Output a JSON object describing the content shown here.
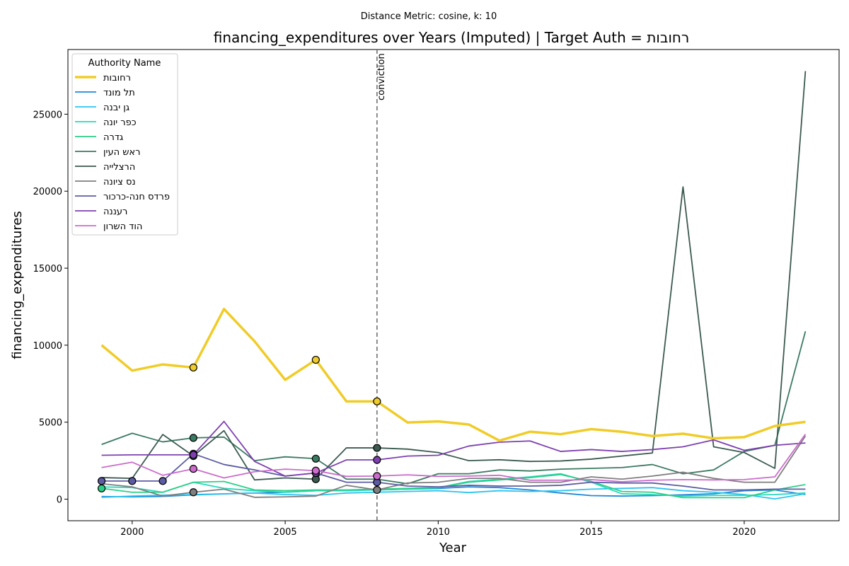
{
  "chart_data": {
    "type": "line",
    "suptitle": "Distance Metric: cosine, k: 10",
    "title": "financing_expenditures over Years (Imputed) | Target Auth = רחובות",
    "xlabel": "Year",
    "ylabel": "financing_expenditures",
    "xlim": [
      1997.9,
      2023.1
    ],
    "ylim": [
      -1400,
      29200
    ],
    "xticks": [
      2000,
      2005,
      2010,
      2015,
      2020
    ],
    "yticks": [
      0,
      5000,
      10000,
      15000,
      20000,
      25000
    ],
    "grid": false,
    "legend_title": "Authority Name",
    "legend_position": "upper-left",
    "vline": {
      "x": 2008,
      "label": "conviction",
      "color": "#707070"
    },
    "x": [
      1999,
      2000,
      2001,
      2002,
      2003,
      2004,
      2005,
      2006,
      2007,
      2008,
      2009,
      2010,
      2011,
      2012,
      2013,
      2014,
      2015,
      2016,
      2017,
      2018,
      2019,
      2020,
      2021,
      2022
    ],
    "series": [
      {
        "name": "רחובות",
        "color": "#f0cc28",
        "width": 3.5,
        "values": [
          10000,
          8350,
          8750,
          8550,
          12350,
          10250,
          7750,
          9050,
          6350,
          6350,
          4980,
          5050,
          4850,
          3800,
          4380,
          4220,
          4550,
          4380,
          4100,
          4250,
          3950,
          4030,
          4750,
          5020
        ],
        "imputed": [
          2002,
          2006,
          2008
        ]
      },
      {
        "name": "תל מונד",
        "color": "#1f88d8",
        "width": 1.8,
        "values": [
          170,
          150,
          180,
          280,
          340,
          400,
          450,
          550,
          580,
          600,
          650,
          700,
          800,
          750,
          600,
          400,
          230,
          200,
          230,
          280,
          350,
          550,
          600,
          300
        ],
        "imputed": []
      },
      {
        "name": "גן יבנה",
        "color": "#2cc4f0",
        "width": 1.8,
        "values": [
          120,
          200,
          260,
          300,
          350,
          400,
          300,
          250,
          400,
          450,
          500,
          550,
          430,
          550,
          500,
          550,
          650,
          700,
          750,
          550,
          450,
          300,
          20,
          350
        ],
        "imputed": []
      },
      {
        "name": "כפר יונה",
        "color": "#28d8bc",
        "width": 1.8,
        "values": [
          800,
          750,
          450,
          1100,
          700,
          550,
          450,
          550,
          550,
          600,
          650,
          750,
          1150,
          1300,
          1450,
          1650,
          1100,
          350,
          300,
          200,
          250,
          250,
          300,
          400
        ],
        "imputed": []
      },
      {
        "name": "גדרה",
        "color": "#2ccf88",
        "width": 1.8,
        "values": [
          700,
          450,
          450,
          1100,
          1150,
          600,
          550,
          600,
          600,
          650,
          700,
          750,
          1100,
          1250,
          1400,
          1600,
          1150,
          500,
          450,
          100,
          100,
          100,
          600,
          950
        ],
        "imputed": [
          1999
        ]
      },
      {
        "name": "ראש העין",
        "color": "#3b7a62",
        "width": 1.8,
        "values": [
          3550,
          4280,
          3720,
          3980,
          4030,
          2500,
          2750,
          2630,
          1300,
          1300,
          1000,
          1650,
          1650,
          1900,
          1830,
          1950,
          2000,
          2050,
          2250,
          1650,
          1900,
          3100,
          3500,
          10900
        ],
        "imputed": [
          2002,
          2006
        ]
      },
      {
        "name": "הרצלייה",
        "color": "#3b5a50",
        "width": 1.8,
        "values": [
          1400,
          1350,
          4200,
          2800,
          4450,
          1250,
          1380,
          1300,
          3330,
          3330,
          3250,
          3030,
          2500,
          2560,
          2450,
          2480,
          2600,
          2800,
          3000,
          20280,
          3400,
          3030,
          2000,
          27800
        ],
        "imputed": [
          2002,
          2006,
          2008
        ]
      },
      {
        "name": "נס ציונה",
        "color": "#7f7f80",
        "width": 1.8,
        "values": [
          1000,
          800,
          200,
          450,
          650,
          120,
          150,
          200,
          900,
          600,
          1050,
          1100,
          1350,
          1350,
          1100,
          1100,
          1450,
          1300,
          1500,
          1750,
          1350,
          1100,
          1100,
          4100
        ],
        "imputed": [
          2002,
          2008
        ]
      },
      {
        "name": "פרדס חנה-כרכור",
        "color": "#5c5ca4",
        "width": 1.8,
        "values": [
          1180,
          1180,
          1180,
          2950,
          2250,
          1900,
          1500,
          1700,
          1100,
          1100,
          850,
          800,
          900,
          850,
          850,
          900,
          1100,
          1050,
          1050,
          850,
          600,
          600,
          650,
          650
        ],
        "imputed": [
          1999,
          2000,
          2001,
          2002,
          2006,
          2008
        ]
      },
      {
        "name": "רעננה",
        "color": "#7e40b0",
        "width": 1.8,
        "values": [
          2850,
          2880,
          2880,
          2880,
          5050,
          2450,
          1500,
          1700,
          2550,
          2550,
          2800,
          2850,
          3450,
          3700,
          3780,
          3100,
          3220,
          3100,
          3220,
          3400,
          3850,
          3170,
          3500,
          3650
        ],
        "imputed": [
          2002,
          2006,
          2008
        ]
      },
      {
        "name": "הוד השרון",
        "color": "#cc6ccc",
        "width": 1.8,
        "values": [
          2050,
          2400,
          1550,
          1970,
          1380,
          1780,
          1950,
          1850,
          1480,
          1500,
          1580,
          1480,
          1500,
          1550,
          1230,
          1230,
          1270,
          1130,
          1230,
          1270,
          1250,
          1270,
          1450,
          4220
        ],
        "imputed": [
          2002,
          2006,
          2008
        ]
      }
    ]
  }
}
